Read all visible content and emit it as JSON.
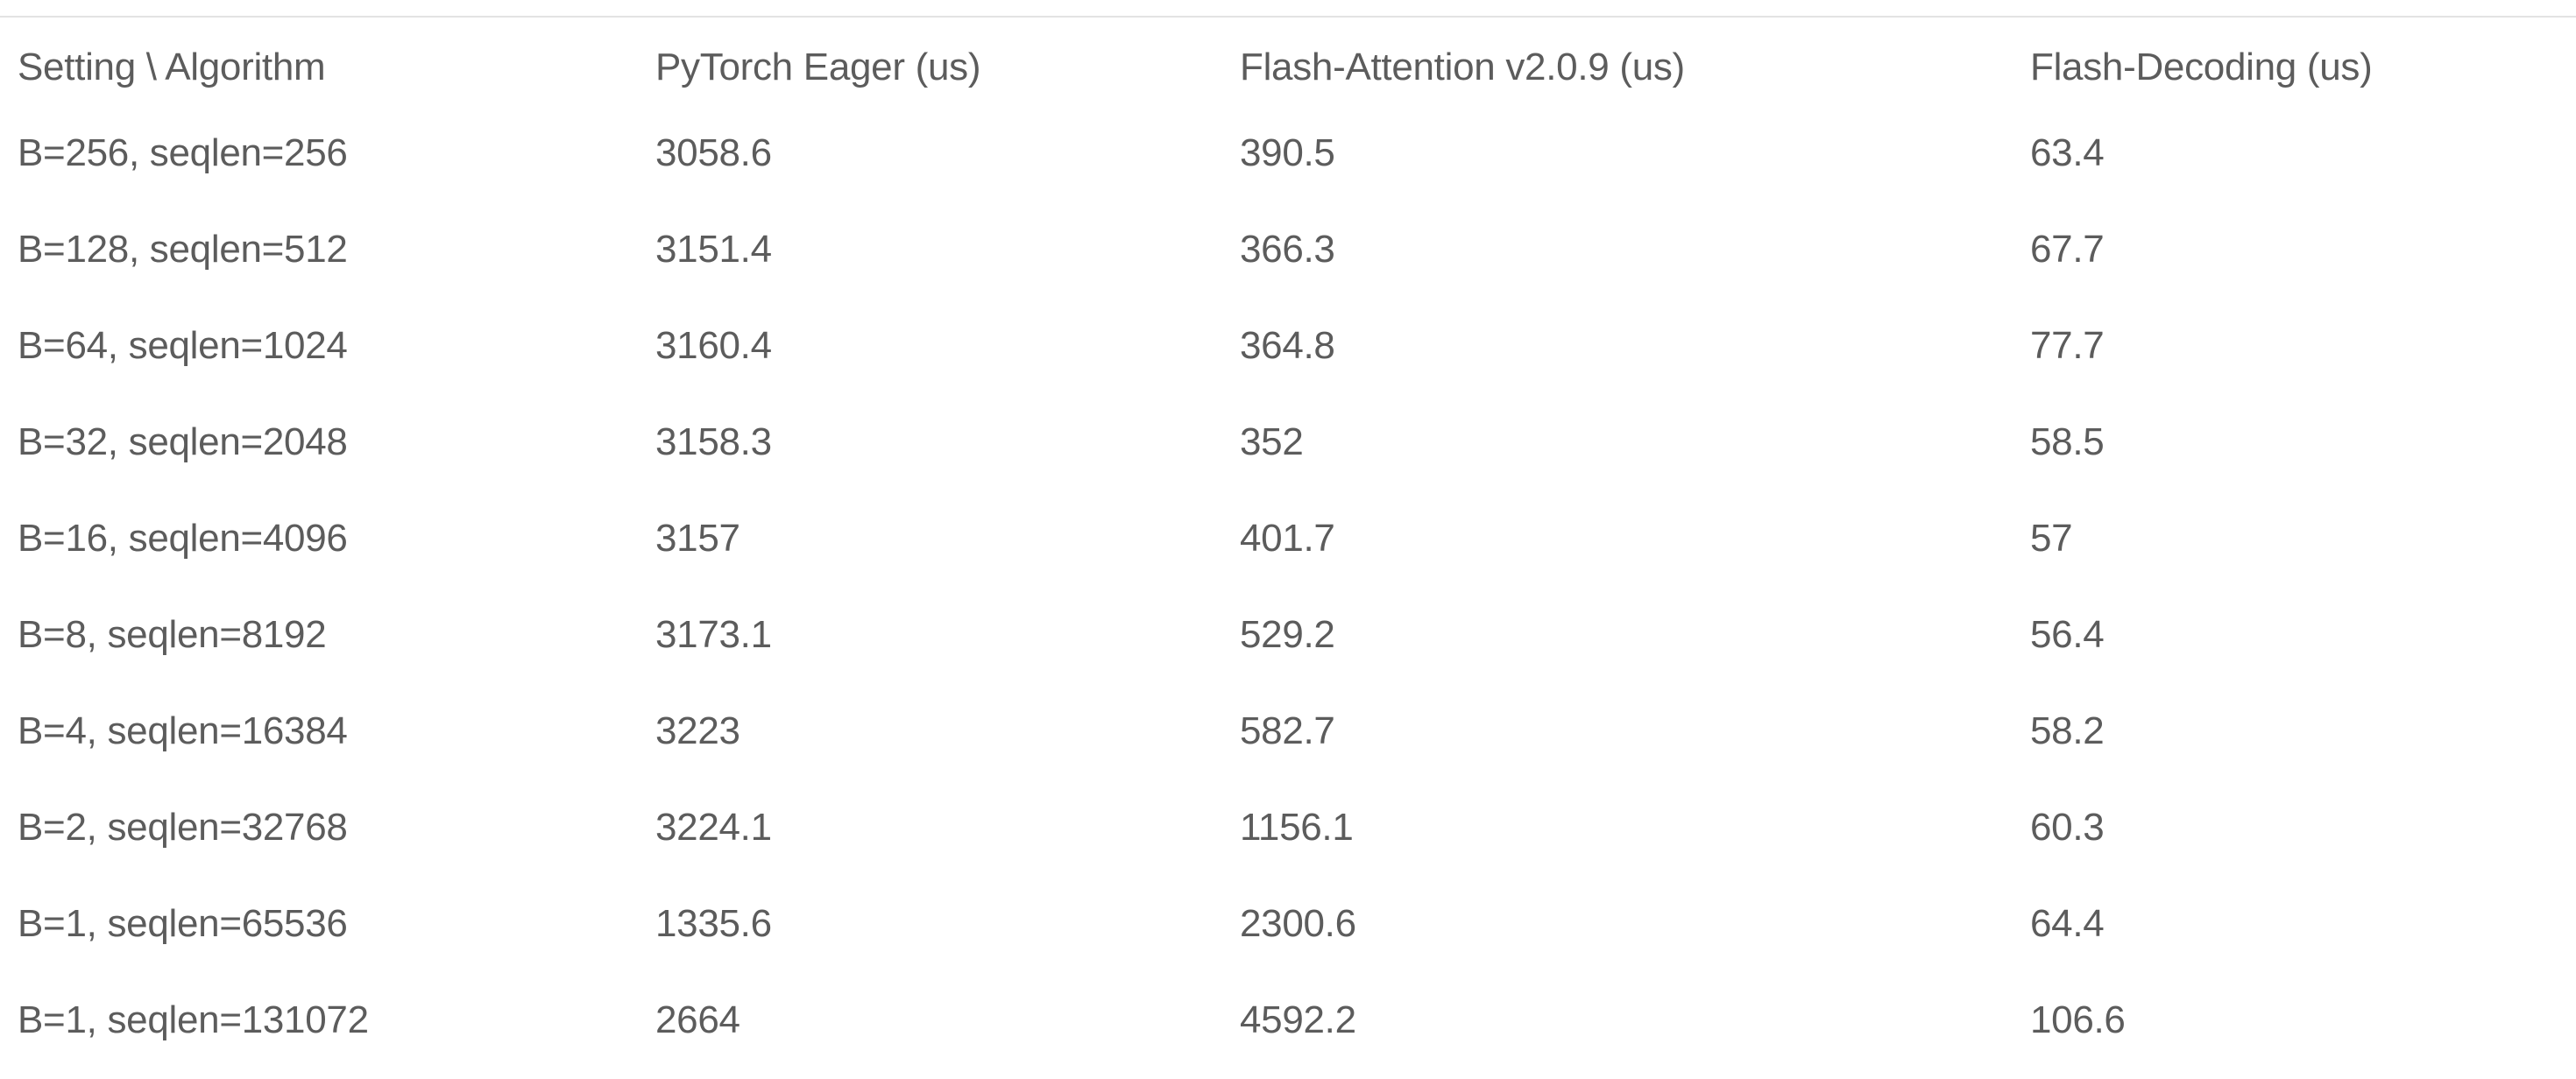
{
  "table": {
    "headers": [
      "Setting \\ Algorithm",
      "PyTorch Eager (us)",
      "Flash-Attention v2.0.9 (us)",
      "Flash-Decoding (us)"
    ],
    "rows": [
      [
        "B=256, seqlen=256",
        "3058.6",
        "390.5",
        "63.4"
      ],
      [
        "B=128, seqlen=512",
        "3151.4",
        "366.3",
        "67.7"
      ],
      [
        "B=64, seqlen=1024",
        "3160.4",
        "364.8",
        "77.7"
      ],
      [
        "B=32, seqlen=2048",
        "3158.3",
        "352",
        "58.5"
      ],
      [
        "B=16, seqlen=4096",
        "3157",
        "401.7",
        "57"
      ],
      [
        "B=8, seqlen=8192",
        "3173.1",
        "529.2",
        "56.4"
      ],
      [
        "B=4, seqlen=16384",
        "3223",
        "582.7",
        "58.2"
      ],
      [
        "B=2, seqlen=32768",
        "3224.1",
        "1156.1",
        "60.3"
      ],
      [
        "B=1, seqlen=65536",
        "1335.6",
        "2300.6",
        "64.4"
      ],
      [
        "B=1, seqlen=131072",
        "2664",
        "4592.2",
        "106.6"
      ]
    ]
  },
  "colors": {
    "text": "#5c5c5c",
    "rule": "#e3e3e3",
    "background": "#ffffff"
  }
}
